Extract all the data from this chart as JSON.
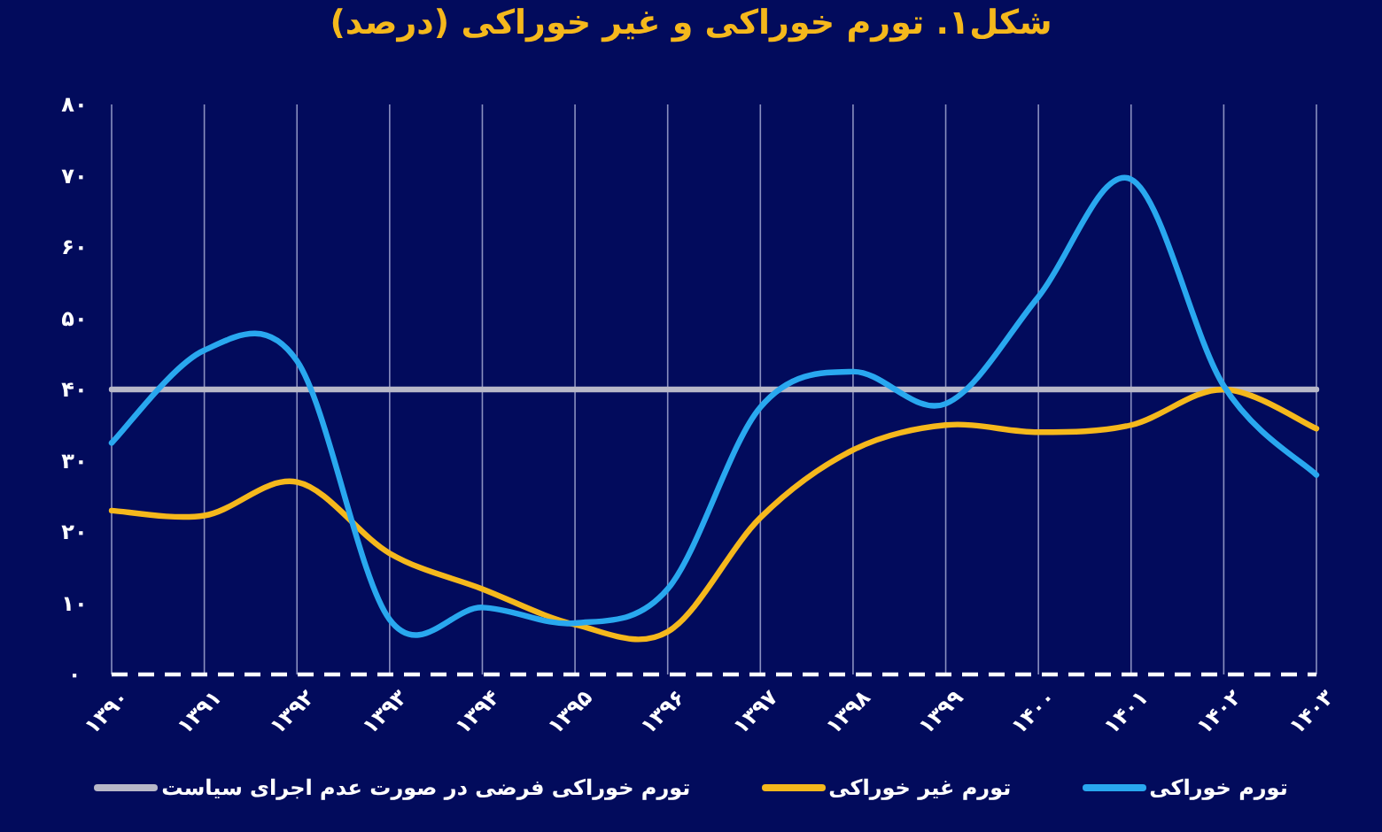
{
  "chart_data": {
    "type": "line",
    "title": "شکل۱. تورم خوراکی و غیر خوراکی (درصد)",
    "categories": [
      "۱۳۹۰",
      "۱۳۹۱",
      "۱۳۹۲",
      "۱۳۹۳",
      "۱۳۹۴",
      "۱۳۹۵",
      "۱۳۹۶",
      "۱۳۹۷",
      "۱۳۹۸",
      "۱۳۹۹",
      "۱۴۰۰",
      "۱۴۰۱",
      "۱۴۰۲",
      "۱۴۰۳"
    ],
    "series": [
      {
        "name": "تورم خوراکی",
        "color": "#29a8ef",
        "values": [
          32.5,
          45.5,
          44,
          7.7,
          9.4,
          7.2,
          12,
          37.5,
          42.5,
          38,
          53,
          69.5,
          40.5,
          28
        ]
      },
      {
        "name": "تورم غیر خوراکی",
        "color": "#f5b81c",
        "values": [
          23,
          22.3,
          27,
          17,
          12,
          7,
          6,
          22,
          31.5,
          35,
          34,
          35,
          40,
          34.5
        ]
      },
      {
        "name": "تورم خوراکی فرضی در صورت عدم اجرای سیاست",
        "color": "#b8b8c8",
        "values": [
          40,
          40,
          40,
          40,
          40,
          40,
          40,
          40,
          40,
          40,
          40,
          40,
          40,
          40
        ]
      }
    ],
    "ylim": [
      0,
      80
    ],
    "yticks": [
      {
        "value": 0,
        "label": "۰"
      },
      {
        "value": 10,
        "label": "۱۰"
      },
      {
        "value": 20,
        "label": "۲۰"
      },
      {
        "value": 30,
        "label": "۳۰"
      },
      {
        "value": 40,
        "label": "۴۰"
      },
      {
        "value": 50,
        "label": "۵۰"
      },
      {
        "value": 60,
        "label": "۶۰"
      },
      {
        "value": 70,
        "label": "۷۰"
      },
      {
        "value": 80,
        "label": "۸۰"
      }
    ],
    "ref_lines": [
      {
        "axis": "y",
        "value": 0,
        "color": "#ffffff",
        "line_style": "dashed"
      }
    ],
    "grid": "x",
    "legend": "bottom",
    "marker": "none",
    "line_style": "solid"
  }
}
